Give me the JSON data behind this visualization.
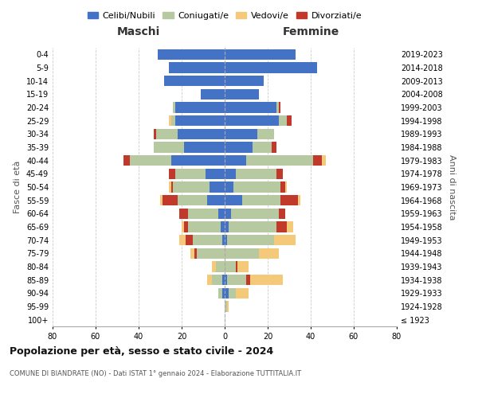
{
  "age_groups": [
    "100+",
    "95-99",
    "90-94",
    "85-89",
    "80-84",
    "75-79",
    "70-74",
    "65-69",
    "60-64",
    "55-59",
    "50-54",
    "45-49",
    "40-44",
    "35-39",
    "30-34",
    "25-29",
    "20-24",
    "15-19",
    "10-14",
    "5-9",
    "0-4"
  ],
  "birth_years": [
    "≤ 1923",
    "1924-1928",
    "1929-1933",
    "1934-1938",
    "1939-1943",
    "1944-1948",
    "1949-1953",
    "1954-1958",
    "1959-1963",
    "1964-1968",
    "1969-1973",
    "1974-1978",
    "1979-1983",
    "1984-1988",
    "1989-1993",
    "1994-1998",
    "1999-2003",
    "2004-2008",
    "2009-2013",
    "2014-2018",
    "2019-2023"
  ],
  "maschi": {
    "celibi": [
      0,
      0,
      1,
      1,
      0,
      0,
      1,
      2,
      3,
      8,
      7,
      9,
      25,
      19,
      22,
      23,
      23,
      11,
      28,
      26,
      31
    ],
    "coniugati": [
      0,
      0,
      2,
      5,
      4,
      13,
      14,
      15,
      14,
      14,
      17,
      14,
      19,
      14,
      10,
      2,
      1,
      0,
      0,
      0,
      0
    ],
    "vedovi": [
      0,
      0,
      0,
      2,
      2,
      2,
      3,
      1,
      0,
      1,
      1,
      0,
      0,
      0,
      0,
      1,
      0,
      0,
      0,
      0,
      0
    ],
    "divorziati": [
      0,
      0,
      0,
      0,
      0,
      1,
      3,
      2,
      4,
      7,
      1,
      3,
      3,
      0,
      1,
      0,
      0,
      0,
      0,
      0,
      0
    ]
  },
  "femmine": {
    "nubili": [
      0,
      0,
      2,
      1,
      0,
      0,
      1,
      2,
      3,
      8,
      4,
      5,
      10,
      13,
      15,
      25,
      24,
      16,
      18,
      43,
      33
    ],
    "coniugate": [
      0,
      1,
      3,
      9,
      5,
      16,
      22,
      22,
      22,
      18,
      22,
      19,
      31,
      9,
      8,
      4,
      1,
      0,
      0,
      0,
      0
    ],
    "vedove": [
      0,
      1,
      6,
      15,
      5,
      9,
      10,
      3,
      0,
      1,
      1,
      0,
      2,
      0,
      0,
      0,
      0,
      0,
      0,
      0,
      0
    ],
    "divorziate": [
      0,
      0,
      0,
      2,
      1,
      0,
      0,
      5,
      3,
      8,
      2,
      3,
      4,
      2,
      0,
      2,
      1,
      0,
      0,
      0,
      0
    ]
  },
  "colors": {
    "celibi_nubili": "#4472c4",
    "coniugati": "#b7c9a0",
    "vedovi": "#f5c97a",
    "divorziati": "#c0392b"
  },
  "title": "Popolazione per età, sesso e stato civile - 2024",
  "subtitle": "COMUNE DI BIANDRATE (NO) - Dati ISTAT 1° gennaio 2024 - Elaborazione TUTTITALIA.IT",
  "xlabel_left": "Maschi",
  "xlabel_right": "Femmine",
  "ylabel_left": "Fasce di età",
  "ylabel_right": "Anni di nascita",
  "xlim": 80,
  "legend_labels": [
    "Celibi/Nubili",
    "Coniugati/e",
    "Vedovi/e",
    "Divorziati/e"
  ],
  "bg_color": "#ffffff",
  "grid_color": "#cccccc"
}
